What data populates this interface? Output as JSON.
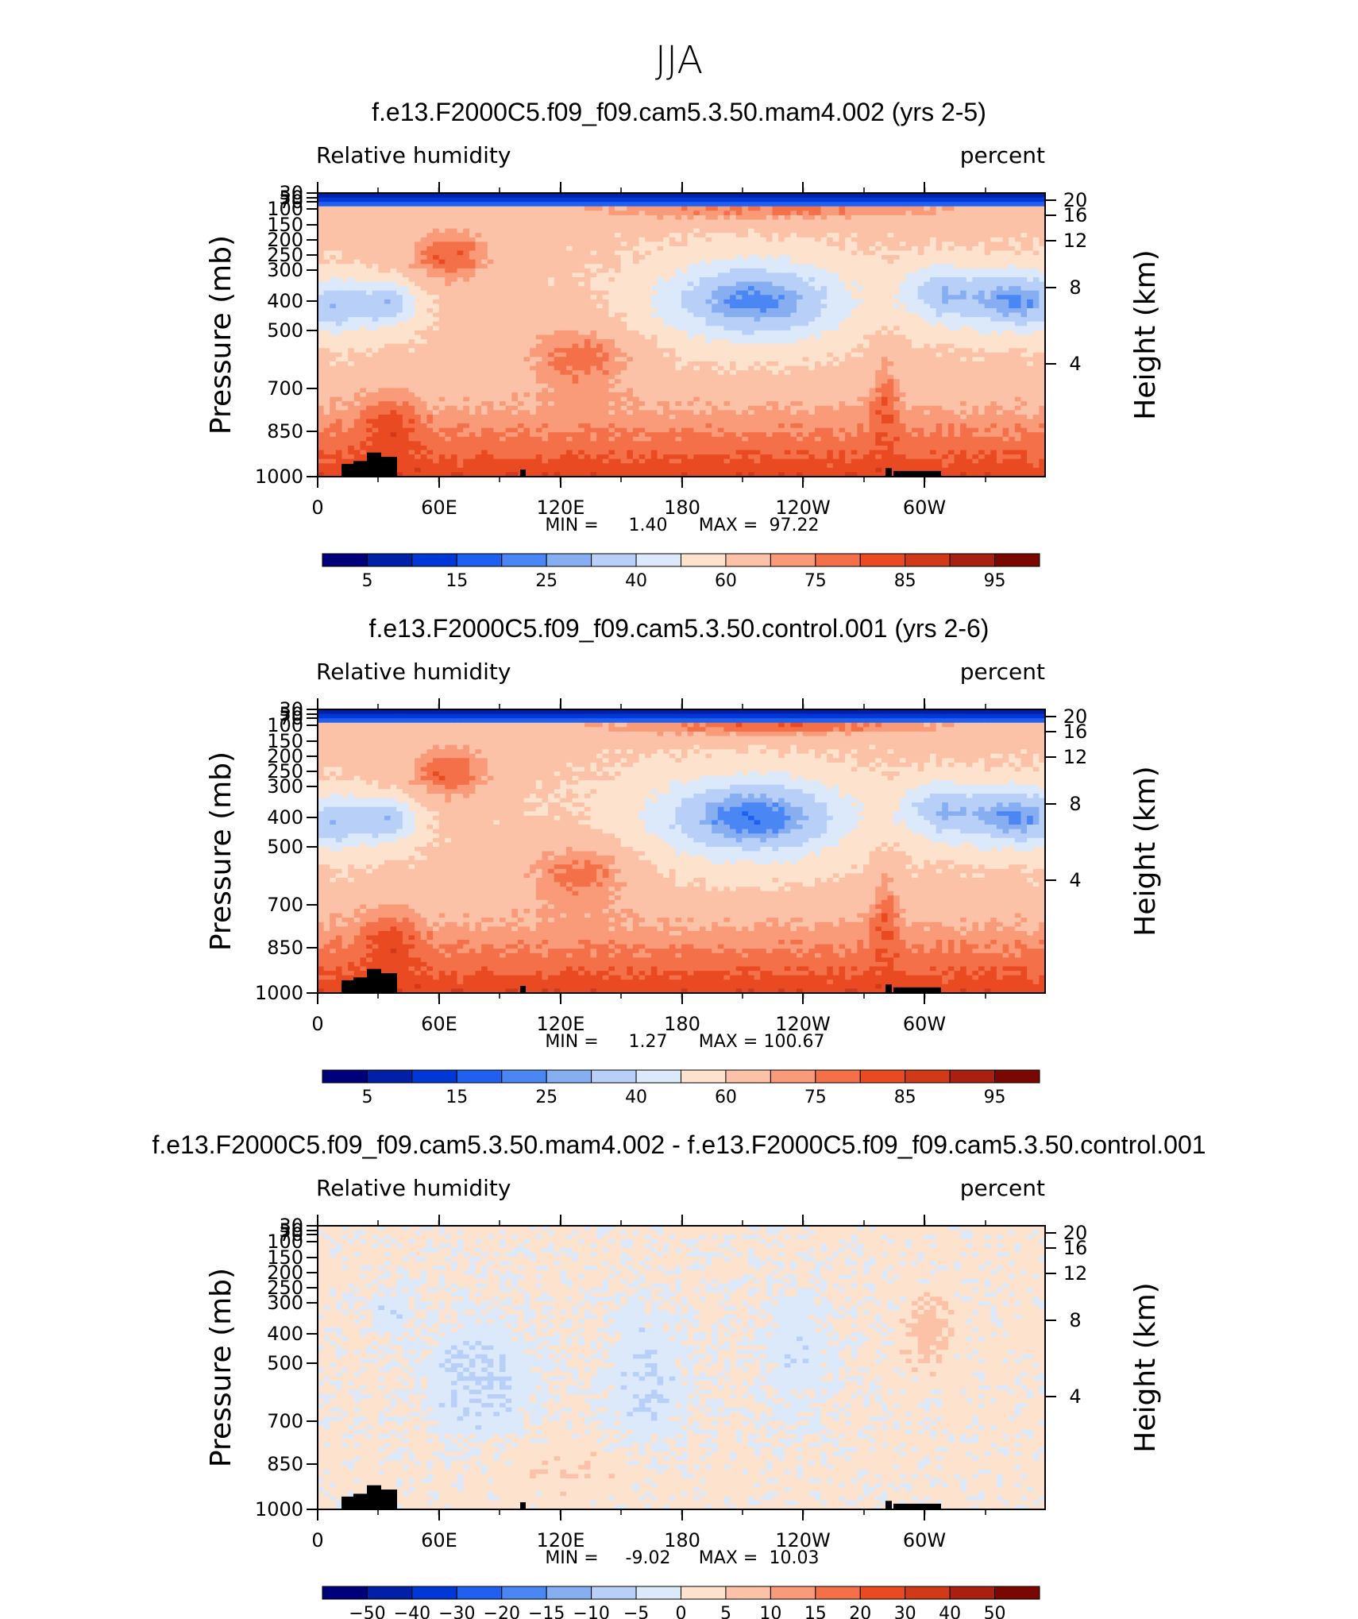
{
  "figure_title": "JJA",
  "colors": {
    "seq": [
      "#00007a",
      "#0020a8",
      "#0038d8",
      "#2060f0",
      "#4a86f4",
      "#88aef2",
      "#b8d0f8",
      "#dce9fb",
      "#fde3cd",
      "#fcc2a8",
      "#f99a78",
      "#f37048",
      "#ea4a22",
      "#d03a18",
      "#a82010",
      "#7a0800"
    ],
    "land": "#000000"
  },
  "common": {
    "corner_left": "Relative humidity",
    "corner_right": "percent",
    "ylabel": "Pressure (mb)",
    "ylabel_right": "Height (km)",
    "yticks": [
      "30",
      "50",
      "70",
      "100",
      "150",
      "200",
      "250",
      "300",
      "400",
      "500",
      "700",
      "850",
      "1000"
    ],
    "height_ticks": [
      "20",
      "16",
      "12",
      "8",
      "4"
    ],
    "xticks": [
      "0",
      "60E",
      "120E",
      "180",
      "120W",
      "60W"
    ]
  },
  "panels": [
    {
      "title": "f.e13.F2000C5.f09_f09.cam5.3.50.mam4.002 (yrs 2-5)",
      "min_label": "MIN =",
      "min": "1.40",
      "max_label": "MAX =",
      "max": "97.22",
      "cb_labels": [
        "5",
        "15",
        "25",
        "40",
        "60",
        "75",
        "85",
        "95"
      ]
    },
    {
      "title": "f.e13.F2000C5.f09_f09.cam5.3.50.control.001 (yrs 2-6)",
      "min_label": "MIN =",
      "min": "1.27",
      "max_label": "MAX =",
      "max": "100.67",
      "cb_labels": [
        "5",
        "15",
        "25",
        "40",
        "60",
        "75",
        "85",
        "95"
      ]
    },
    {
      "title": "f.e13.F2000C5.f09_f09.cam5.3.50.mam4.002 - f.e13.F2000C5.f09_f09.cam5.3.50.control.001",
      "min_label": "MIN =",
      "min": "-9.02",
      "max_label": "MAX =",
      "max": "10.03",
      "cb_labels": [
        "-50",
        "-40",
        "-30",
        "-20",
        "-15",
        "-10",
        "-5",
        "0",
        "5",
        "10",
        "15",
        "20",
        "30",
        "40",
        "50"
      ]
    }
  ],
  "chart_data": [
    {
      "type": "heatmap",
      "title": "f.e13.F2000C5.f09_f09.cam5.3.50.mam4.002 (yrs 2-5)",
      "variable": "Relative humidity",
      "units": "percent",
      "xlabel": "",
      "ylabel": "Pressure (mb)",
      "xlim": [
        0,
        360
      ],
      "ylim": [
        1000,
        30
      ],
      "y_scale": "log-pressure",
      "min": 1.4,
      "max": 97.22,
      "contour_levels": [
        5,
        10,
        15,
        20,
        25,
        30,
        40,
        50,
        60,
        70,
        75,
        80,
        85,
        90,
        95
      ]
    },
    {
      "type": "heatmap",
      "title": "f.e13.F2000C5.f09_f09.cam5.3.50.control.001 (yrs 2-6)",
      "variable": "Relative humidity",
      "units": "percent",
      "xlabel": "",
      "ylabel": "Pressure (mb)",
      "xlim": [
        0,
        360
      ],
      "ylim": [
        1000,
        30
      ],
      "y_scale": "log-pressure",
      "min": 1.27,
      "max": 100.67,
      "contour_levels": [
        5,
        10,
        15,
        20,
        25,
        30,
        40,
        50,
        60,
        70,
        75,
        80,
        85,
        90,
        95
      ]
    },
    {
      "type": "heatmap",
      "title": "f.e13.F2000C5.f09_f09.cam5.3.50.mam4.002 - f.e13.F2000C5.f09_f09.cam5.3.50.control.001",
      "variable": "Relative humidity",
      "units": "percent",
      "xlabel": "",
      "ylabel": "Pressure (mb)",
      "xlim": [
        0,
        360
      ],
      "ylim": [
        1000,
        30
      ],
      "y_scale": "log-pressure",
      "min": -9.02,
      "max": 10.03,
      "contour_levels": [
        -50,
        -40,
        -30,
        -20,
        -15,
        -10,
        -5,
        0,
        5,
        10,
        15,
        20,
        30,
        40,
        50
      ]
    }
  ]
}
